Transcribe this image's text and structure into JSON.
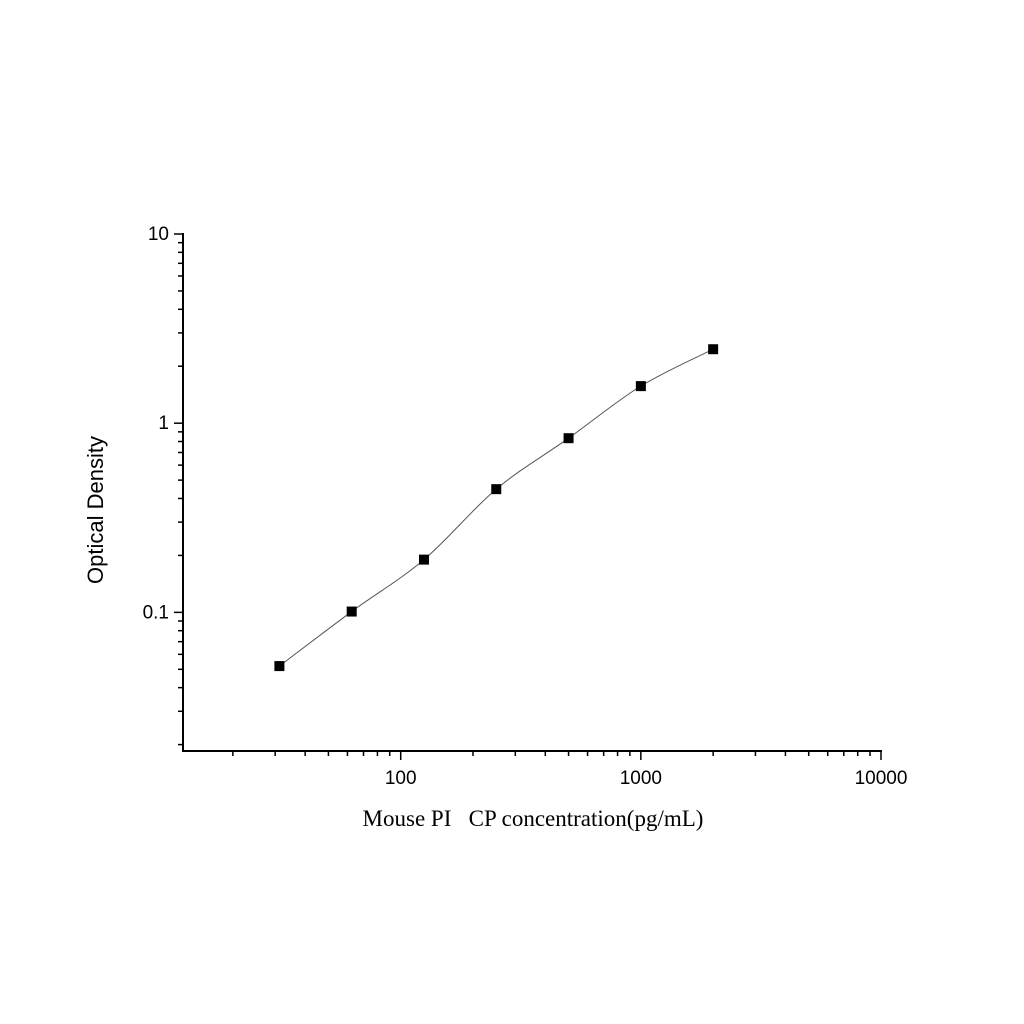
{
  "chart_data": {
    "type": "scatter",
    "title": "",
    "xlabel": "Mouse PI   CP concentration(pg/mL)",
    "ylabel": "Optical Density",
    "xscale": "log",
    "yscale": "log",
    "xlim": [
      12.4,
      10000
    ],
    "ylim": [
      0.0185,
      10
    ],
    "x_ticks": [
      {
        "value": 100,
        "label": "100"
      },
      {
        "value": 1000,
        "label": "1000"
      },
      {
        "value": 10000,
        "label": "10000"
      }
    ],
    "y_ticks": [
      {
        "value": 0.1,
        "label": "0.1"
      },
      {
        "value": 1,
        "label": "1"
      },
      {
        "value": 10,
        "label": "10"
      }
    ],
    "grid": false,
    "legend": "none",
    "marker": "square",
    "marker_color": "#000000",
    "curve_color": "#555555",
    "fit_curve": true,
    "series": [
      {
        "x": [
          31.25,
          62.5,
          125,
          250,
          500,
          1000,
          2000
        ],
        "y": [
          0.052,
          0.101,
          0.19,
          0.448,
          0.833,
          1.57,
          2.46
        ]
      }
    ]
  }
}
